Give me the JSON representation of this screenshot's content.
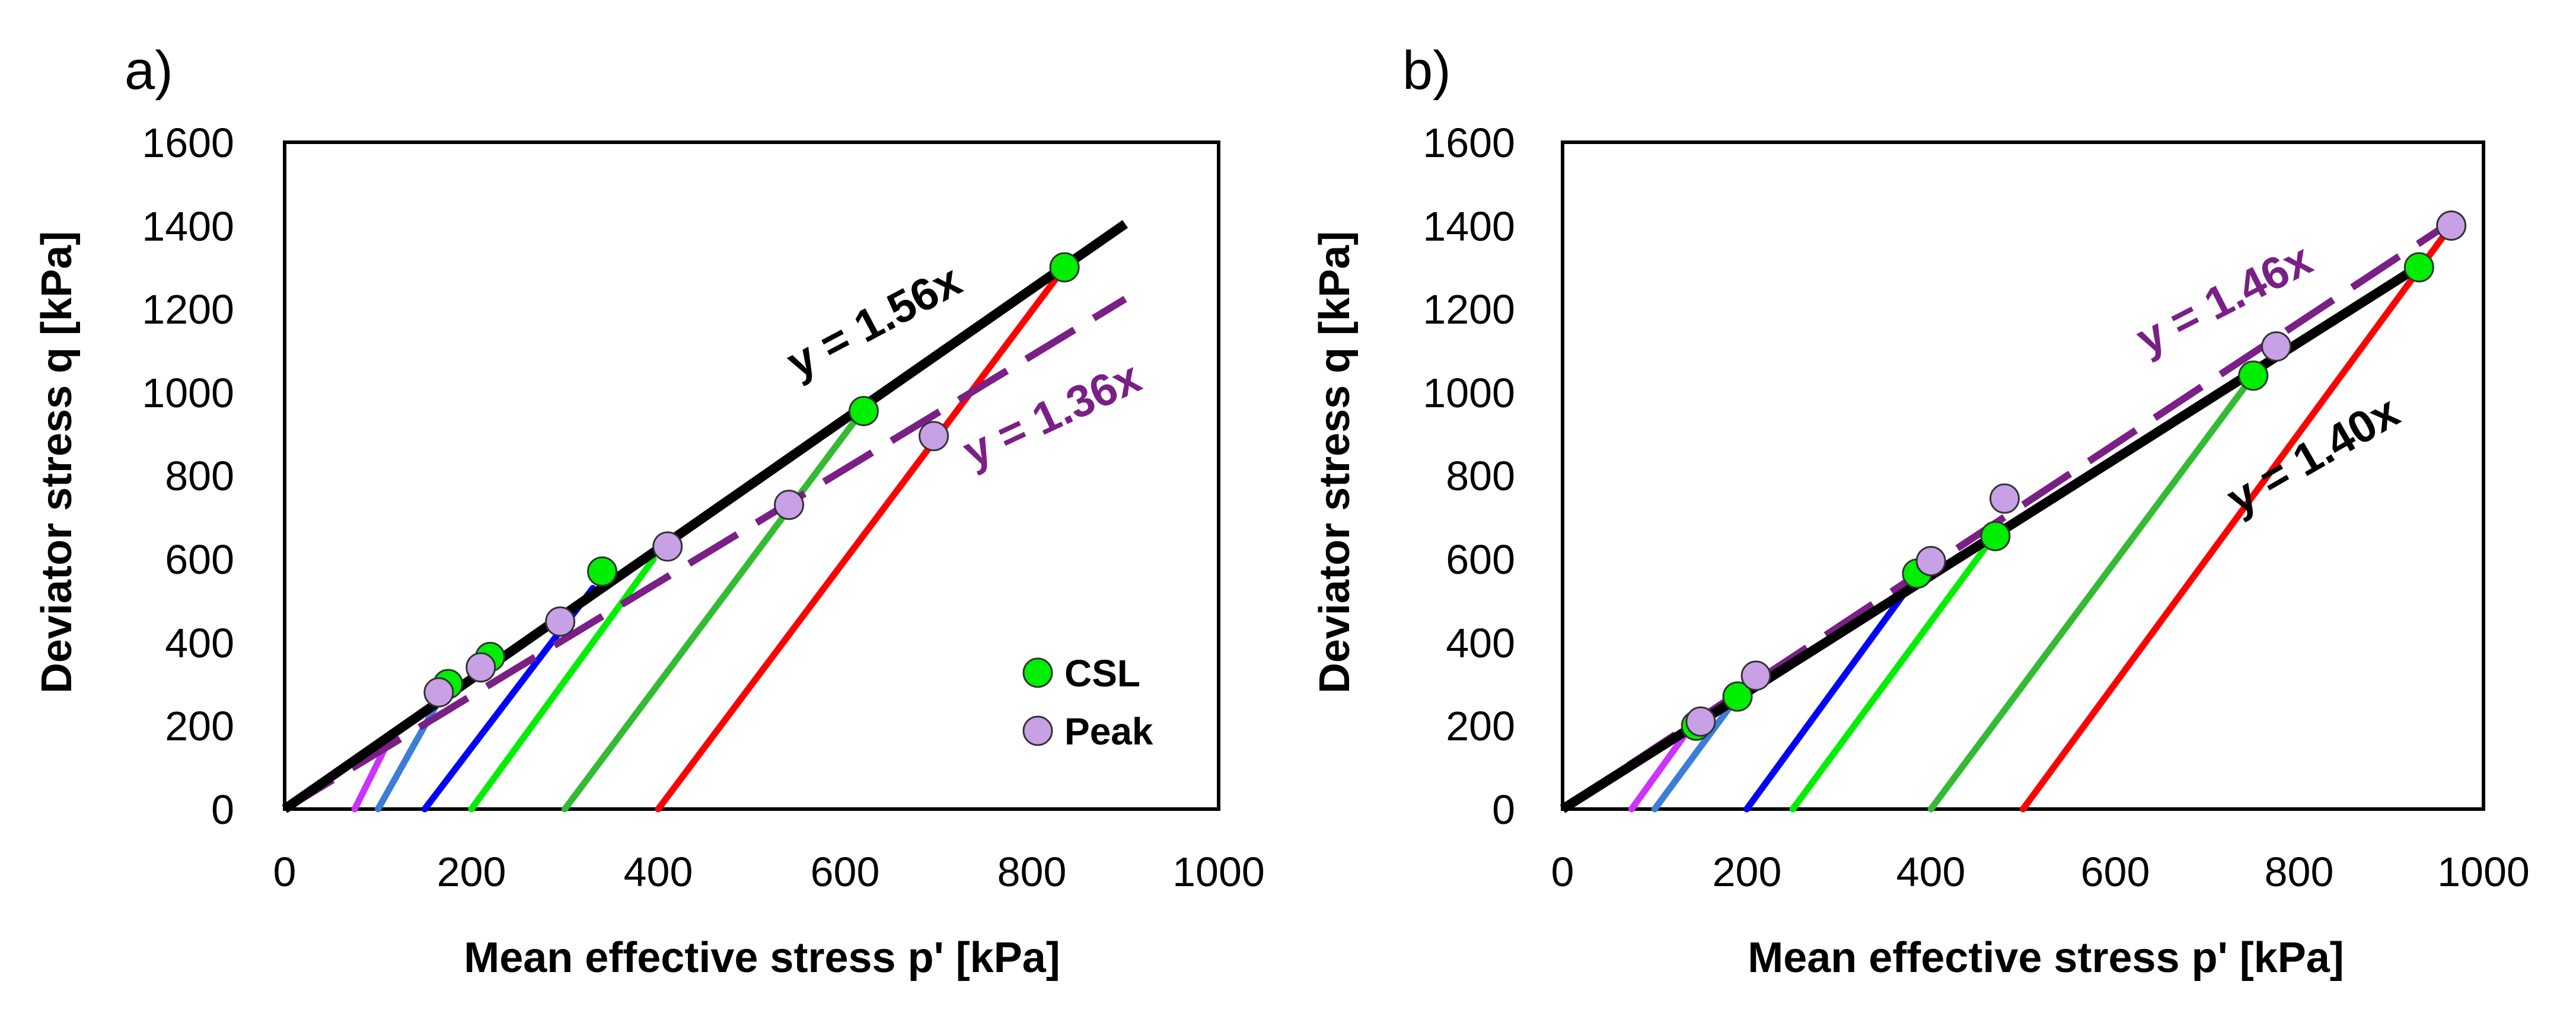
{
  "chart_data": [
    {
      "type": "scatter",
      "panel_label": "a)",
      "xlabel": "Mean effective stress p' [kPa]",
      "ylabel": "Deviator stress q [kPa]",
      "xlim": [
        0,
        1000
      ],
      "ylim": [
        0,
        1600
      ],
      "xticks": [
        "0",
        "200",
        "400",
        "600",
        "800",
        "1000"
      ],
      "yticks": [
        "0",
        "200",
        "400",
        "600",
        "800",
        "1000",
        "1200",
        "1400",
        "1600"
      ],
      "stress_paths": [
        {
          "color": "#cc33ff",
          "start": [
            75,
            0
          ],
          "end": [
            115,
            180
          ]
        },
        {
          "color": "#3b7dd8",
          "start": [
            100,
            0
          ],
          "end": [
            170,
            280
          ]
        },
        {
          "color": "#0000ff",
          "start": [
            150,
            0
          ],
          "end": [
            330,
            530
          ]
        },
        {
          "color": "#00ee00",
          "start": [
            200,
            0
          ],
          "end": [
            395,
            600
          ]
        },
        {
          "color": "#33bb33",
          "start": [
            300,
            0
          ],
          "end": [
            620,
            960
          ]
        },
        {
          "color": "#ff0000",
          "start": [
            400,
            0
          ],
          "end": [
            835,
            1300
          ]
        }
      ],
      "series": [
        {
          "name": "CSL",
          "color": "#00ee00",
          "x": [
            175,
            220,
            340,
            620,
            835
          ],
          "y": [
            300,
            365,
            570,
            955,
            1300
          ]
        },
        {
          "name": "Peak",
          "color": "#c8a0e6",
          "x": [
            165,
            210,
            295,
            410,
            540,
            695
          ],
          "y": [
            280,
            340,
            450,
            630,
            730,
            895
          ]
        }
      ],
      "fit_lines": [
        {
          "label": "y = 1.56x",
          "slope": 1.56,
          "x_end": 900,
          "style": "solid",
          "color": "#000000"
        },
        {
          "label": "y = 1.36x",
          "slope": 1.36,
          "x_end": 900,
          "style": "dashed",
          "color": "#7a1f86"
        }
      ],
      "legend": {
        "position": "bottom-right",
        "entries": [
          "CSL",
          "Peak"
        ]
      }
    },
    {
      "type": "scatter",
      "panel_label": "b)",
      "xlabel": "Mean effective stress p' [kPa]",
      "ylabel": "Deviator stress q [kPa]",
      "xlim": [
        0,
        1000
      ],
      "ylim": [
        0,
        1600
      ],
      "xticks": [
        "0",
        "200",
        "400",
        "600",
        "800",
        "1000"
      ],
      "yticks": [
        "0",
        "200",
        "400",
        "600",
        "800",
        "1000",
        "1200",
        "1400",
        "1600"
      ],
      "stress_paths": [
        {
          "color": "#cc33ff",
          "start": [
            75,
            0
          ],
          "end": [
            140,
            200
          ]
        },
        {
          "color": "#3b7dd8",
          "start": [
            100,
            0
          ],
          "end": [
            190,
            270
          ]
        },
        {
          "color": "#0000ff",
          "start": [
            200,
            0
          ],
          "end": [
            395,
            590
          ]
        },
        {
          "color": "#00ee00",
          "start": [
            250,
            0
          ],
          "end": [
            470,
            660
          ]
        },
        {
          "color": "#33bb33",
          "start": [
            400,
            0
          ],
          "end": [
            750,
            1040
          ]
        },
        {
          "color": "#ff0000",
          "start": [
            500,
            0
          ],
          "end": [
            965,
            1400
          ]
        }
      ],
      "series": [
        {
          "name": "CSL",
          "color": "#00ee00",
          "x": [
            145,
            190,
            385,
            470,
            750,
            930
          ],
          "y": [
            200,
            270,
            565,
            655,
            1040,
            1300
          ]
        },
        {
          "name": "Peak",
          "color": "#c8a0e6",
          "x": [
            150,
            210,
            400,
            480,
            775,
            965
          ],
          "y": [
            210,
            320,
            595,
            745,
            1110,
            1400
          ]
        }
      ],
      "fit_lines": [
        {
          "label": "y = 1.40x",
          "slope": 1.4,
          "x_end": 930,
          "style": "solid",
          "color": "#000000"
        },
        {
          "label": "y = 1.46x",
          "slope": 1.46,
          "x_end": 965,
          "style": "dashed",
          "color": "#7a1f86"
        }
      ]
    }
  ]
}
